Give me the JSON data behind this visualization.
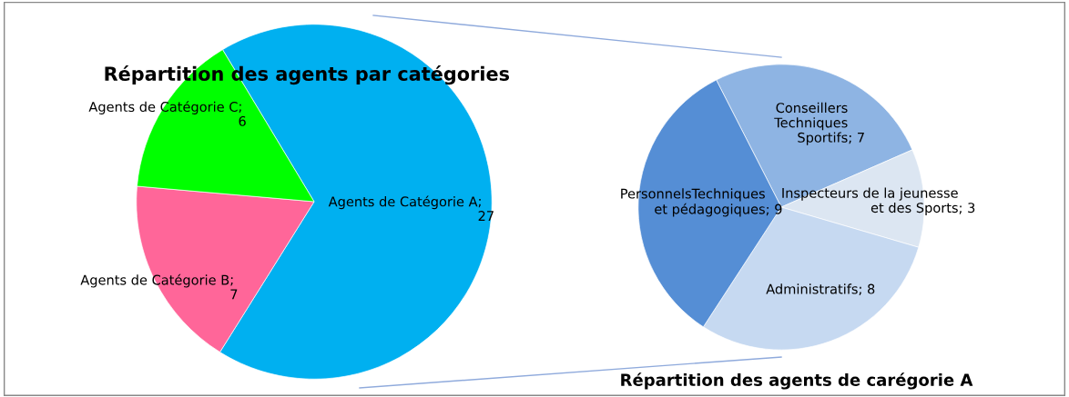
{
  "chart_data": [
    {
      "type": "pie",
      "title": "Répartition des agents par catégories",
      "categories": [
        "Agents de Catégorie A",
        "Agents de Catégorie B",
        "Agents de Catégorie C"
      ],
      "values": [
        27,
        7,
        6
      ],
      "colors": [
        "#00b0f0",
        "#ff6699",
        "#00ff00"
      ],
      "value_labels": [
        ";\n27",
        ";\n7",
        ";\n6"
      ]
    },
    {
      "type": "pie",
      "title": "Répartition des agents de carégorie A",
      "categories": [
        "Conseillers\nTechniques\nSportifs",
        "Inspecteurs de la jeunesse\net des Sports",
        "Administratifs",
        "PersonnelsTechniques\net pédagogiques"
      ],
      "values": [
        7,
        3,
        8,
        9
      ],
      "colors": [
        "#8eb4e3",
        "#dce6f2",
        "#c6d9f1",
        "#558ed5"
      ],
      "value_labels": [
        "; 7",
        "; 3",
        "; 8",
        "; 9"
      ]
    }
  ]
}
